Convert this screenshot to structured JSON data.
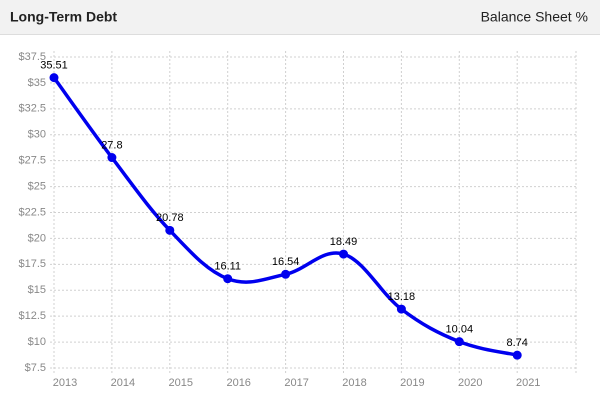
{
  "chart_data": {
    "type": "line",
    "title": "Long-Term Debt",
    "subtitle": "Balance Sheet %",
    "categories": [
      "2013",
      "2014",
      "2015",
      "2016",
      "2017",
      "2018",
      "2019",
      "2020",
      "2021"
    ],
    "series": [
      {
        "name": "Long-Term Debt",
        "color": "#0000ee",
        "values": [
          35.51,
          27.8,
          20.78,
          16.11,
          16.54,
          18.49,
          13.18,
          10.04,
          8.74
        ]
      }
    ],
    "ylim": [
      7.5,
      37.5
    ],
    "yticks": [
      {
        "value": 7.5,
        "label": "$7.5"
      },
      {
        "value": 10,
        "label": "$10"
      },
      {
        "value": 12.5,
        "label": "$12.5"
      },
      {
        "value": 15,
        "label": "$15"
      },
      {
        "value": 17.5,
        "label": "$17.5"
      },
      {
        "value": 20,
        "label": "$20"
      },
      {
        "value": 22.5,
        "label": "$22.5"
      },
      {
        "value": 25,
        "label": "$25"
      },
      {
        "value": 27.5,
        "label": "$27.5"
      },
      {
        "value": 30,
        "label": "$30"
      },
      {
        "value": 32.5,
        "label": "$32.5"
      },
      {
        "value": 35,
        "label": "$35"
      },
      {
        "value": 37.5,
        "label": "$37.5"
      }
    ],
    "grid": true
  }
}
